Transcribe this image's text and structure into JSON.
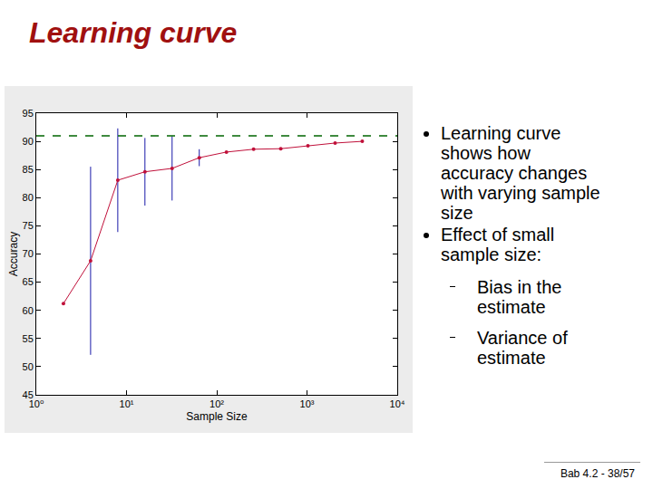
{
  "slide": {
    "title": "Learning curve",
    "bullets": [
      {
        "text": "Learning curve shows how accuracy changes with varying sample size"
      },
      {
        "text": "Effect of small sample size:",
        "sub": [
          "Bias in the estimate",
          "Variance of estimate"
        ]
      }
    ],
    "footer": "Bab 4.2 - 38/57"
  },
  "chart_data": {
    "type": "line",
    "x_label": "Sample Size",
    "y_label": "Accuracy",
    "log": "x",
    "grid": false,
    "xlim": [
      1,
      10000
    ],
    "xticks": [
      {
        "value": 1,
        "label": "10⁰"
      },
      {
        "value": 10,
        "label": "10¹"
      },
      {
        "value": 100,
        "label": "10²"
      },
      {
        "value": 1000,
        "label": "10³"
      },
      {
        "value": 10000,
        "label": "10⁴"
      }
    ],
    "ylim": [
      45,
      95
    ],
    "yticks": [
      45,
      50,
      55,
      60,
      65,
      70,
      75,
      80,
      85,
      90,
      95
    ],
    "series": [
      {
        "type": "line",
        "color": "#c0103a",
        "marker": "circle",
        "line_style": "solid",
        "x": [
          2,
          4,
          8,
          16,
          32,
          64,
          128,
          256,
          512,
          1024,
          2048,
          4096
        ],
        "values": [
          61.2,
          68.8,
          83.1,
          84.6,
          85.2,
          87.1,
          88.1,
          88.6,
          88.7,
          89.2,
          89.7,
          90.0
        ],
        "errors": [
          null,
          16.7,
          9.2,
          6.0,
          5.7,
          1.5,
          null,
          null,
          null,
          null,
          null,
          null
        ]
      },
      {
        "type": "line",
        "color": "#006400",
        "line_style": "dashed",
        "x": [
          1,
          10000
        ],
        "values": [
          91,
          91
        ]
      }
    ]
  }
}
